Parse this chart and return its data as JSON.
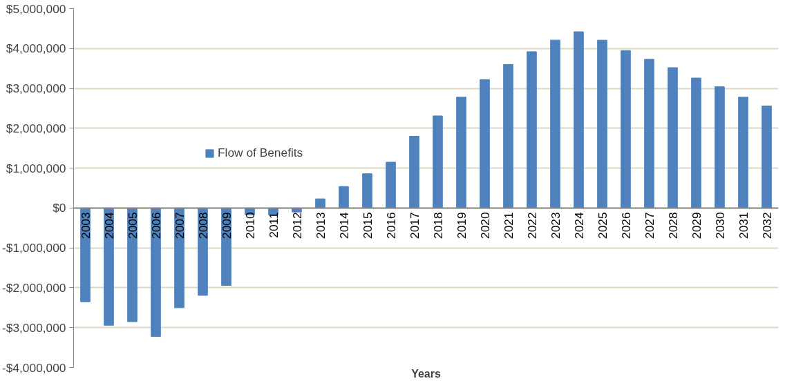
{
  "chart_data": {
    "type": "bar",
    "xlabel": "Years",
    "categories": [
      "2003",
      "2004",
      "2005",
      "2006",
      "2007",
      "2008",
      "2009",
      "2010",
      "2011",
      "2012",
      "2013",
      "2014",
      "2015",
      "2016",
      "2017",
      "2018",
      "2019",
      "2020",
      "2021",
      "2022",
      "2023",
      "2024",
      "2025",
      "2026",
      "2027",
      "2028",
      "2029",
      "2030",
      "2031",
      "2032"
    ],
    "series": [
      {
        "name": "Flow of Benefits",
        "color": "#4f81bd",
        "values": [
          -2350000,
          -2940000,
          -2850000,
          -3220000,
          -2500000,
          -2190000,
          -1940000,
          -170000,
          -170000,
          -100000,
          230000,
          540000,
          860000,
          1150000,
          1800000,
          2310000,
          2780000,
          3220000,
          3600000,
          3920000,
          4210000,
          4420000,
          4210000,
          3950000,
          3730000,
          3520000,
          3260000,
          3040000,
          2780000,
          2560000
        ]
      }
    ],
    "ylim": [
      -4000000,
      5000000
    ],
    "yticks": [
      {
        "value": -4000000,
        "label": "-$4,000,000"
      },
      {
        "value": -3000000,
        "label": "-$3,000,000"
      },
      {
        "value": -2000000,
        "label": "-$2,000,000"
      },
      {
        "value": -1000000,
        "label": "-$1,000,000"
      },
      {
        "value": 0,
        "label": "$0"
      },
      {
        "value": 1000000,
        "label": "$1,000,000"
      },
      {
        "value": 2000000,
        "label": "$2,000,000"
      },
      {
        "value": 3000000,
        "label": "$3,000,000"
      },
      {
        "value": 4000000,
        "label": "$4,000,000"
      },
      {
        "value": 5000000,
        "label": "$5,000,000"
      }
    ],
    "grid": "y",
    "legend": "left"
  }
}
